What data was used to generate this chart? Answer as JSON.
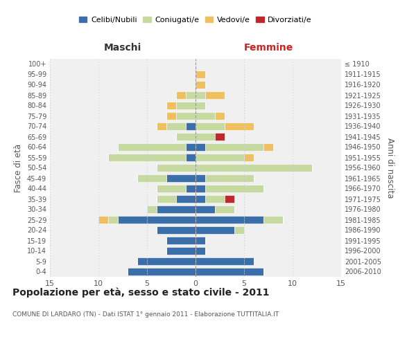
{
  "age_groups": [
    "0-4",
    "5-9",
    "10-14",
    "15-19",
    "20-24",
    "25-29",
    "30-34",
    "35-39",
    "40-44",
    "45-49",
    "50-54",
    "55-59",
    "60-64",
    "65-69",
    "70-74",
    "75-79",
    "80-84",
    "85-89",
    "90-94",
    "95-99",
    "100+"
  ],
  "birth_years": [
    "2006-2010",
    "2001-2005",
    "1996-2000",
    "1991-1995",
    "1986-1990",
    "1981-1985",
    "1976-1980",
    "1971-1975",
    "1966-1970",
    "1961-1965",
    "1956-1960",
    "1951-1955",
    "1946-1950",
    "1941-1945",
    "1936-1940",
    "1931-1935",
    "1926-1930",
    "1921-1925",
    "1916-1920",
    "1911-1915",
    "≤ 1910"
  ],
  "maschi": {
    "celibi": [
      7,
      6,
      3,
      3,
      4,
      8,
      4,
      2,
      1,
      3,
      0,
      1,
      1,
      0,
      1,
      0,
      0,
      0,
      0,
      0,
      0
    ],
    "coniugati": [
      0,
      0,
      0,
      0,
      0,
      1,
      1,
      2,
      3,
      3,
      4,
      8,
      7,
      2,
      2,
      2,
      2,
      1,
      0,
      0,
      0
    ],
    "vedovi": [
      0,
      0,
      0,
      0,
      0,
      1,
      0,
      0,
      0,
      0,
      0,
      0,
      0,
      0,
      1,
      1,
      1,
      1,
      0,
      0,
      0
    ],
    "divorziati": [
      0,
      0,
      0,
      0,
      0,
      0,
      0,
      0,
      0,
      0,
      0,
      0,
      0,
      0,
      0,
      0,
      0,
      0,
      0,
      0,
      0
    ]
  },
  "femmine": {
    "nubili": [
      7,
      6,
      1,
      1,
      4,
      7,
      2,
      1,
      1,
      1,
      0,
      0,
      1,
      0,
      0,
      0,
      0,
      0,
      0,
      0,
      0
    ],
    "coniugate": [
      0,
      0,
      0,
      0,
      1,
      2,
      2,
      2,
      6,
      5,
      12,
      5,
      6,
      2,
      3,
      2,
      1,
      1,
      0,
      0,
      0
    ],
    "vedove": [
      0,
      0,
      0,
      0,
      0,
      0,
      0,
      0,
      0,
      0,
      0,
      1,
      1,
      0,
      3,
      1,
      0,
      2,
      1,
      1,
      0
    ],
    "divorziate": [
      0,
      0,
      0,
      0,
      0,
      0,
      0,
      1,
      0,
      0,
      0,
      0,
      0,
      1,
      0,
      0,
      0,
      0,
      0,
      0,
      0
    ]
  },
  "colors": {
    "celibi_nubili": "#3b6faa",
    "coniugati": "#c5d9a0",
    "vedovi": "#f0c060",
    "divorziati": "#c0272d"
  },
  "title": "Popolazione per età, sesso e stato civile - 2011",
  "subtitle": "COMUNE DI LARDARO (TN) - Dati ISTAT 1° gennaio 2011 - Elaborazione TUTTITALIA.IT",
  "xlabel_left": "Maschi",
  "xlabel_right": "Femmine",
  "ylabel_left": "Fasce di età",
  "ylabel_right": "Anni di nascita",
  "xlim": 15,
  "background_color": "#f0f0f0",
  "grid_color": "#cccccc"
}
